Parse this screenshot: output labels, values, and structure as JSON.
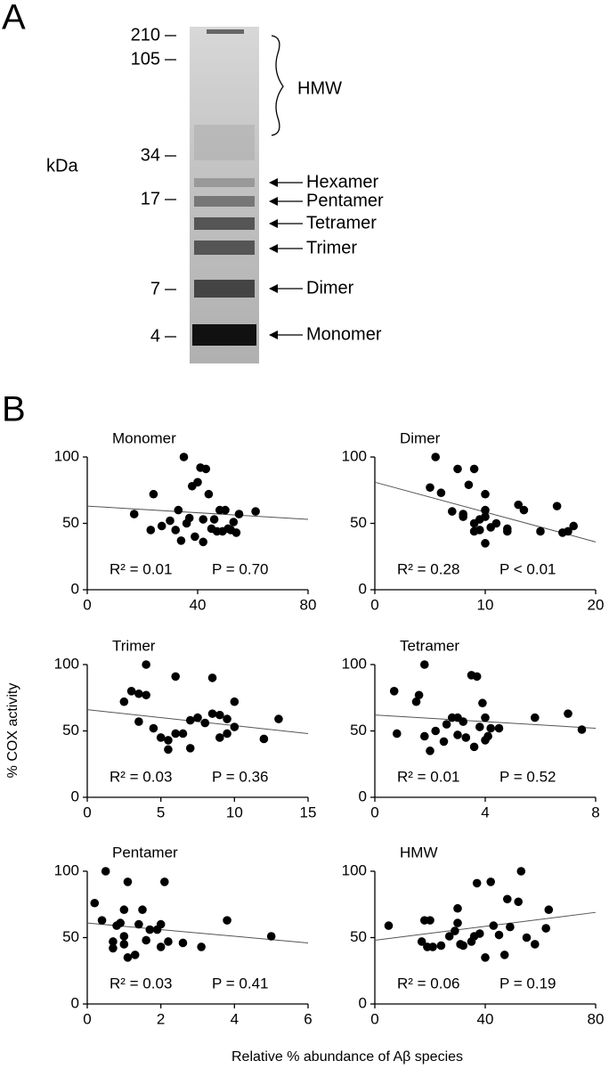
{
  "panel_labels": [
    "A",
    "B"
  ],
  "gel": {
    "kda_label": "kDa",
    "markers": [
      "210",
      "105",
      "34",
      "17",
      "7",
      "4"
    ],
    "bands": [
      "Hexamer",
      "Pentamer",
      "Tetramer",
      "Trimer",
      "Dimer",
      "Monomer"
    ],
    "brace_label": "HMW"
  },
  "y_axis_label": "% COX activity",
  "x_axis_label": "Relative % abundance of Aβ species",
  "chart_data": [
    {
      "type": "scatter",
      "title": "Monomer",
      "color": "#000000",
      "xlim": [
        0,
        80
      ],
      "xticks": [
        0,
        40,
        80
      ],
      "ylim": [
        0,
        100
      ],
      "yticks": [
        0,
        50,
        100
      ],
      "x": [
        17,
        23,
        24,
        27,
        30,
        32,
        33,
        34,
        35,
        36,
        37,
        38,
        39,
        40,
        41,
        42,
        42,
        43,
        44,
        45,
        46,
        47,
        48,
        49,
        50,
        51,
        52,
        53,
        54,
        55,
        61
      ],
      "values": [
        57,
        45,
        72,
        48,
        52,
        45,
        60,
        37,
        100,
        50,
        54,
        78,
        40,
        81,
        92,
        53,
        36,
        91,
        72,
        46,
        53,
        44,
        60,
        44,
        60,
        46,
        45,
        51,
        43,
        57,
        59
      ],
      "fit_line": {
        "x": [
          0,
          80
        ],
        "y": [
          63,
          53
        ]
      },
      "stat_r2": "R² = 0.01",
      "stat_p": "P = 0.70"
    },
    {
      "type": "scatter",
      "title": "Dimer",
      "color": "#000000",
      "xlim": [
        0,
        20
      ],
      "xticks": [
        0,
        10,
        20
      ],
      "ylim": [
        0,
        100
      ],
      "yticks": [
        0,
        50,
        100
      ],
      "x": [
        5,
        5.5,
        6,
        7,
        7.5,
        8,
        8,
        8.5,
        9,
        9,
        9.5,
        10,
        10,
        10,
        9.5,
        10.5,
        11,
        12,
        12,
        13,
        13.5,
        15,
        16.5,
        17,
        17.5,
        18,
        10,
        9
      ],
      "values": [
        77,
        100,
        73,
        59,
        91,
        57,
        55,
        79,
        50,
        91,
        53,
        60,
        72,
        35,
        45,
        47,
        50,
        44,
        46,
        64,
        60,
        44,
        63,
        43,
        44,
        48,
        55,
        44
      ],
      "fit_line": {
        "x": [
          0,
          20
        ],
        "y": [
          81,
          36
        ]
      },
      "stat_r2": "R² = 0.28",
      "stat_p": "P < 0.01"
    },
    {
      "type": "scatter",
      "title": "Trimer",
      "color": "#000000",
      "xlim": [
        0,
        15
      ],
      "xticks": [
        0,
        5,
        10,
        15
      ],
      "ylim": [
        0,
        100
      ],
      "yticks": [
        0,
        50,
        100
      ],
      "x": [
        2.5,
        3,
        3.5,
        3.5,
        4,
        4,
        4.5,
        5,
        5.5,
        5.5,
        6,
        6,
        6.5,
        7,
        7,
        7.5,
        8,
        8.5,
        8.5,
        9,
        9,
        9.5,
        9.5,
        10,
        10,
        12,
        13
      ],
      "values": [
        72,
        80,
        78,
        57,
        100,
        77,
        52,
        45,
        43,
        36,
        91,
        48,
        48,
        37,
        58,
        60,
        56,
        63,
        90,
        45,
        62,
        59,
        48,
        53,
        72,
        44,
        59
      ],
      "fit_line": {
        "x": [
          0,
          15
        ],
        "y": [
          66,
          48
        ]
      },
      "stat_r2": "R² = 0.03",
      "stat_p": "P = 0.36"
    },
    {
      "type": "scatter",
      "title": "Tetramer",
      "color": "#000000",
      "xlim": [
        0,
        8
      ],
      "xticks": [
        0,
        4,
        8
      ],
      "ylim": [
        0,
        100
      ],
      "yticks": [
        0,
        50,
        100
      ],
      "x": [
        0.7,
        0.8,
        1.5,
        1.6,
        1.8,
        1.8,
        2,
        2.2,
        2.5,
        2.6,
        2.8,
        3,
        3,
        3.2,
        3.5,
        3.6,
        3.7,
        3.8,
        3.9,
        4,
        4,
        4.1,
        4.2,
        4.5,
        5.8,
        7,
        7.5,
        3.3
      ],
      "values": [
        80,
        48,
        72,
        77,
        100,
        46,
        35,
        50,
        42,
        55,
        60,
        47,
        60,
        57,
        92,
        38,
        91,
        53,
        71,
        43,
        60,
        46,
        52,
        52,
        60,
        63,
        51,
        45
      ],
      "fit_line": {
        "x": [
          0,
          8
        ],
        "y": [
          62,
          52
        ]
      },
      "stat_r2": "R² = 0.01",
      "stat_p": "P = 0.52"
    },
    {
      "type": "scatter",
      "title": "Pentamer",
      "color": "#000000",
      "xlim": [
        0,
        6
      ],
      "xticks": [
        0,
        2,
        4,
        6
      ],
      "ylim": [
        0,
        100
      ],
      "yticks": [
        0,
        50,
        100
      ],
      "x": [
        0.2,
        0.4,
        0.5,
        0.7,
        0.7,
        0.8,
        0.9,
        1,
        1,
        1,
        1.1,
        1.1,
        1.3,
        1.4,
        1.5,
        1.6,
        1.7,
        1.9,
        2,
        2,
        2.1,
        2.2,
        2.6,
        3.1,
        3.8,
        5
      ],
      "values": [
        76,
        63,
        100,
        47,
        42,
        59,
        61,
        71,
        51,
        45,
        92,
        35,
        37,
        60,
        71,
        48,
        56,
        56,
        60,
        43,
        92,
        47,
        46,
        43,
        63,
        51
      ],
      "fit_line": {
        "x": [
          0,
          6
        ],
        "y": [
          61,
          46
        ]
      },
      "stat_r2": "R² = 0.03",
      "stat_p": "P = 0.41"
    },
    {
      "type": "scatter",
      "title": "HMW",
      "color": "#000000",
      "xlim": [
        0,
        80
      ],
      "xticks": [
        0,
        40,
        80
      ],
      "ylim": [
        0,
        100
      ],
      "yticks": [
        0,
        50,
        100
      ],
      "x": [
        5,
        17,
        18,
        19,
        20,
        21,
        24,
        27,
        29,
        30,
        30,
        31,
        32,
        35,
        36,
        37,
        38,
        40,
        42,
        43,
        45,
        47,
        48,
        49,
        52,
        53,
        55,
        58,
        62,
        63
      ],
      "values": [
        59,
        47,
        63,
        43,
        63,
        43,
        44,
        51,
        55,
        72,
        61,
        45,
        44,
        47,
        51,
        91,
        53,
        35,
        92,
        59,
        52,
        37,
        79,
        58,
        77,
        100,
        50,
        45,
        57,
        71
      ],
      "fit_line": {
        "x": [
          0,
          80
        ],
        "y": [
          48,
          69
        ]
      },
      "stat_r2": "R² = 0.06",
      "stat_p": "P = 0.19"
    }
  ]
}
